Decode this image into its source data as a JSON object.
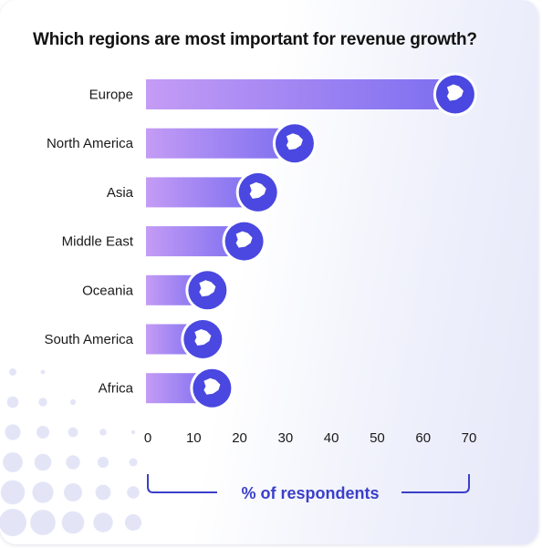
{
  "colors": {
    "bar_start": "#c49cf5",
    "bar_end": "#7c6ef0",
    "badge": "#4a48e0",
    "bracket": "#3b3fc9",
    "dots": "#e3e5f7"
  },
  "chart_data": {
    "type": "bar",
    "orientation": "horizontal",
    "title": "Which regions are most important for revenue growth?",
    "xlabel": "% of respondents",
    "ylabel": "",
    "xlim": [
      0,
      70
    ],
    "xticks": [
      0,
      10,
      20,
      30,
      40,
      50,
      60,
      70
    ],
    "categories": [
      "Europe",
      "North America",
      "Asia",
      "Middle East",
      "Oceania",
      "South America",
      "Africa"
    ],
    "values": [
      67,
      32,
      24,
      21,
      13,
      12,
      14
    ],
    "icons": [
      "europe-map-icon",
      "north-america-map-icon",
      "asia-map-icon",
      "middle-east-map-icon",
      "oceania-map-icon",
      "south-america-map-icon",
      "africa-map-icon"
    ],
    "grid": false,
    "legend": "none"
  }
}
